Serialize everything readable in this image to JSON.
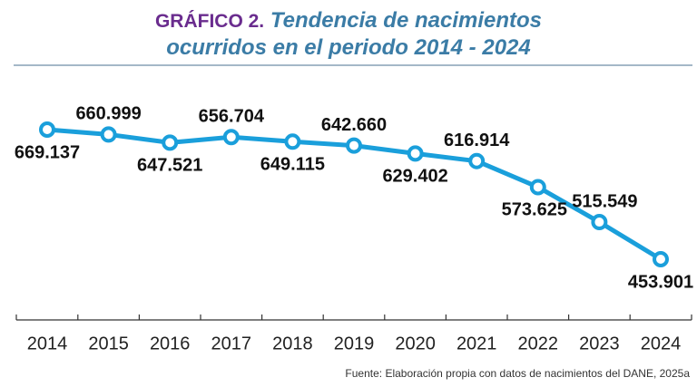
{
  "chart_data": {
    "type": "line",
    "figure_label": "GRÁFICO 2.",
    "title": "Tendencia de nacimientos ocurridos en el periodo 2014 - 2024",
    "source": "Fuente: Elaboración propia con datos de nacimientos del DANE, 2025a",
    "categories": [
      "2014",
      "2015",
      "2016",
      "2017",
      "2018",
      "2019",
      "2020",
      "2021",
      "2022",
      "2023",
      "2024"
    ],
    "series": [
      {
        "color": "#1a9fdb",
        "values": [
          669137,
          660999,
          647521,
          656704,
          649115,
          642660,
          629402,
          616914,
          573625,
          515549,
          453901
        ],
        "value_labels": [
          "669.137",
          "660.999",
          "647.521",
          "656.704",
          "649.115",
          "642.660",
          "629.402",
          "616.914",
          "573.625",
          "515.549",
          "453.901"
        ]
      }
    ]
  }
}
